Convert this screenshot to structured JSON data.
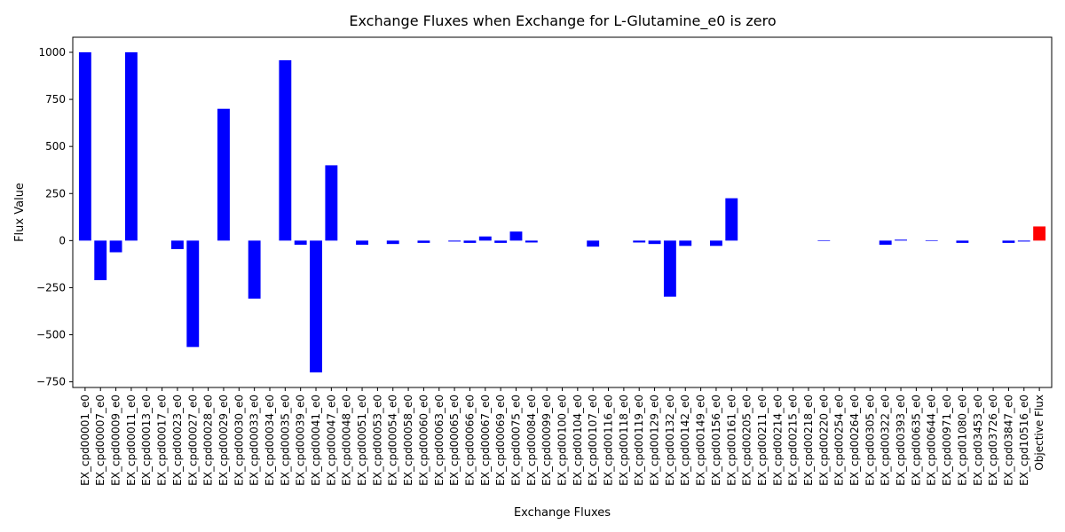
{
  "chart_data": {
    "type": "bar",
    "title": "Exchange Fluxes when Exchange for L-Glutamine_e0 is zero",
    "xlabel": "Exchange Fluxes",
    "ylabel": "Flux Value",
    "ylim": [
      -780,
      1080
    ],
    "yticks": [
      -750,
      -500,
      -250,
      0,
      250,
      500,
      750,
      1000
    ],
    "grid": false,
    "colors": {
      "default": "#0000ff",
      "objective": "#ff0000"
    },
    "categories": [
      "EX_cpd00001_e0",
      "EX_cpd00007_e0",
      "EX_cpd00009_e0",
      "EX_cpd00011_e0",
      "EX_cpd00013_e0",
      "EX_cpd00017_e0",
      "EX_cpd00023_e0",
      "EX_cpd00027_e0",
      "EX_cpd00028_e0",
      "EX_cpd00029_e0",
      "EX_cpd00030_e0",
      "EX_cpd00033_e0",
      "EX_cpd00034_e0",
      "EX_cpd00035_e0",
      "EX_cpd00039_e0",
      "EX_cpd00041_e0",
      "EX_cpd00047_e0",
      "EX_cpd00048_e0",
      "EX_cpd00051_e0",
      "EX_cpd00053_e0",
      "EX_cpd00054_e0",
      "EX_cpd00058_e0",
      "EX_cpd00060_e0",
      "EX_cpd00063_e0",
      "EX_cpd00065_e0",
      "EX_cpd00066_e0",
      "EX_cpd00067_e0",
      "EX_cpd00069_e0",
      "EX_cpd00075_e0",
      "EX_cpd00084_e0",
      "EX_cpd00099_e0",
      "EX_cpd00100_e0",
      "EX_cpd00104_e0",
      "EX_cpd00107_e0",
      "EX_cpd00116_e0",
      "EX_cpd00118_e0",
      "EX_cpd00119_e0",
      "EX_cpd00129_e0",
      "EX_cpd00132_e0",
      "EX_cpd00142_e0",
      "EX_cpd00149_e0",
      "EX_cpd00156_e0",
      "EX_cpd00161_e0",
      "EX_cpd00205_e0",
      "EX_cpd00211_e0",
      "EX_cpd00214_e0",
      "EX_cpd00215_e0",
      "EX_cpd00218_e0",
      "EX_cpd00220_e0",
      "EX_cpd00254_e0",
      "EX_cpd00264_e0",
      "EX_cpd00305_e0",
      "EX_cpd00322_e0",
      "EX_cpd00393_e0",
      "EX_cpd00635_e0",
      "EX_cpd00644_e0",
      "EX_cpd00971_e0",
      "EX_cpd01080_e0",
      "EX_cpd03453_e0",
      "EX_cpd03726_e0",
      "EX_cpd03847_e0",
      "EX_cpd10516_e0",
      "Objective Flux"
    ],
    "values": [
      1000,
      -210,
      -62,
      1000,
      0,
      0,
      -45,
      -565,
      0,
      700,
      0,
      -308,
      0,
      958,
      -22,
      -700,
      400,
      0,
      -22,
      0,
      -18,
      0,
      -12,
      0,
      -5,
      -12,
      22,
      -12,
      48,
      -10,
      0,
      0,
      0,
      -32,
      0,
      0,
      -10,
      -18,
      -298,
      -28,
      0,
      -28,
      225,
      0,
      0,
      0,
      0,
      0,
      -3,
      0,
      0,
      0,
      -22,
      5,
      0,
      -3,
      0,
      -12,
      0,
      0,
      -12,
      -5,
      75
    ],
    "highlight_index": 62
  }
}
